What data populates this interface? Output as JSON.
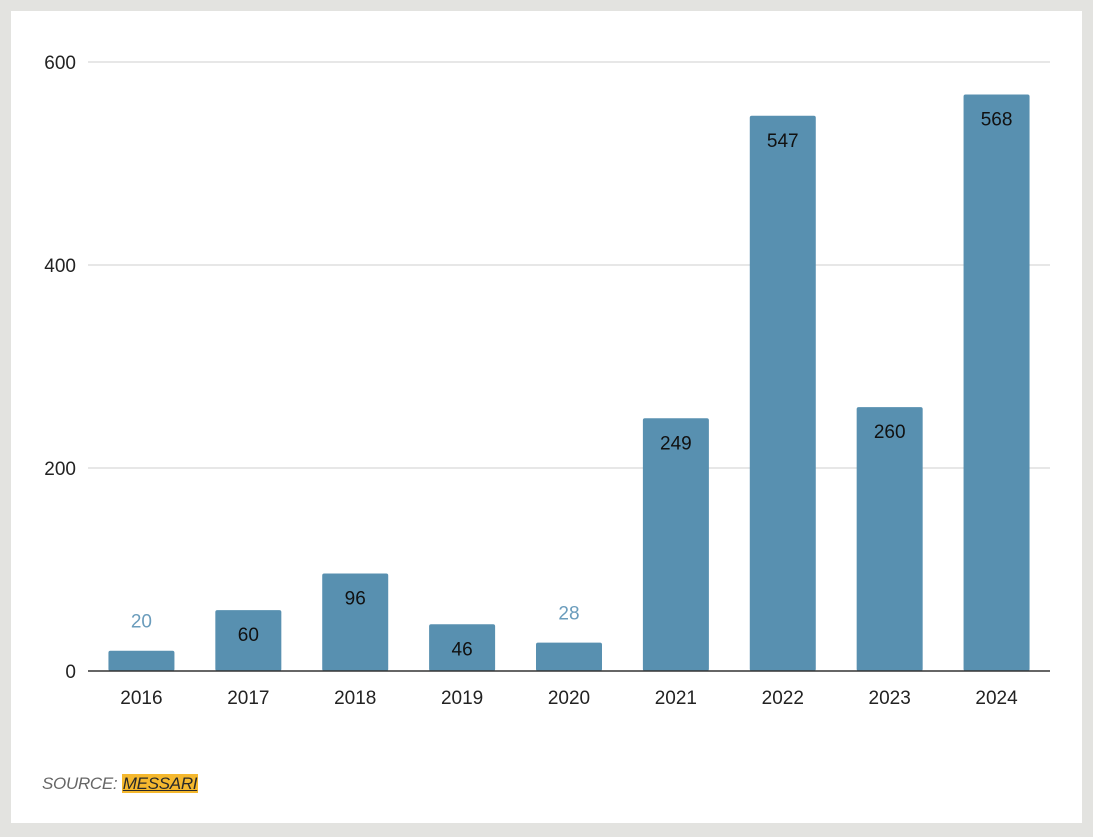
{
  "chart_data": {
    "type": "bar",
    "categories": [
      "2016",
      "2017",
      "2018",
      "2019",
      "2020",
      "2021",
      "2022",
      "2023",
      "2024"
    ],
    "values": [
      20,
      60,
      96,
      46,
      28,
      249,
      547,
      260,
      568
    ],
    "title": "",
    "xlabel": "",
    "ylabel": "",
    "ylim": [
      0,
      600
    ],
    "yticks": [
      0,
      200,
      400,
      600
    ],
    "grid": true,
    "bar_color": "#5890b0",
    "label_color_inside": "#111111",
    "label_color_outside": "#6a9cbc"
  },
  "source": {
    "prefix": "SOURCE:",
    "link": "MESSARI",
    "highlight_color": "#f5b82e"
  }
}
